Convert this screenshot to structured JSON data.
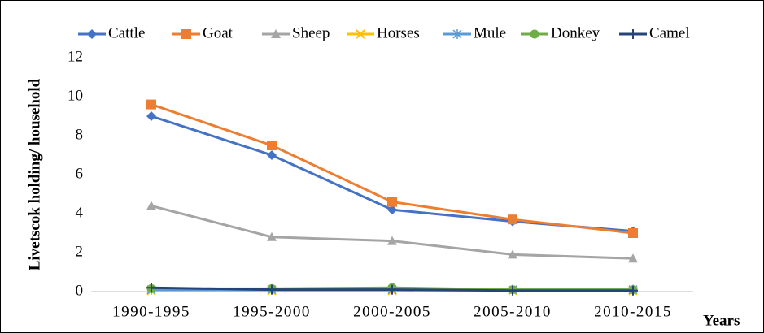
{
  "chart_data": {
    "type": "line",
    "y_label": "Livetscok holding/ household",
    "x_label": "Years",
    "categories": [
      "1990-1995",
      "1995-2000",
      "2000-2005",
      "2005-2010",
      "2010-2015"
    ],
    "series": [
      {
        "name": "Cattle",
        "color": "#4472c4",
        "marker": "diamond",
        "values": [
          9.0,
          7.0,
          4.2,
          3.6,
          3.1
        ]
      },
      {
        "name": "Goat",
        "color": "#ed7d31",
        "marker": "square",
        "values": [
          9.6,
          7.5,
          4.6,
          3.7,
          3.0
        ]
      },
      {
        "name": "Sheep",
        "color": "#a5a5a5",
        "marker": "triangle",
        "values": [
          4.4,
          2.8,
          2.6,
          1.9,
          1.7
        ]
      },
      {
        "name": "Horses",
        "color": "#ffc000",
        "marker": "x",
        "values": [
          0.05,
          0.05,
          0.05,
          0.05,
          0.05
        ]
      },
      {
        "name": "Mule",
        "color": "#5b9bd5",
        "marker": "asterisk",
        "values": [
          0.1,
          0.1,
          0.1,
          0.1,
          0.1
        ]
      },
      {
        "name": "Donkey",
        "color": "#70ad47",
        "marker": "circle",
        "values": [
          0.15,
          0.15,
          0.2,
          0.1,
          0.1
        ]
      },
      {
        "name": "Camel",
        "color": "#264478",
        "marker": "plus",
        "values": [
          0.2,
          0.1,
          0.1,
          0.05,
          0.05
        ]
      }
    ],
    "ylim": [
      0,
      12
    ],
    "yticks": [
      0,
      2,
      4,
      6,
      8,
      10,
      12
    ],
    "grid": false,
    "legend": "top"
  }
}
